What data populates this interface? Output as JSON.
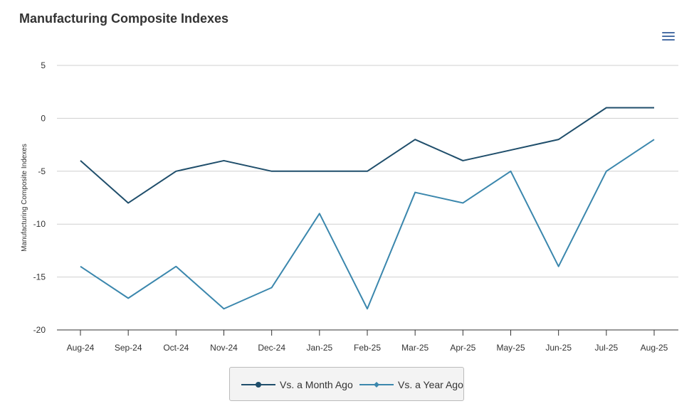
{
  "title": "Manufacturing Composite Indexes",
  "menu_icon": "hamburger-menu-icon",
  "chart_data": {
    "type": "line",
    "title": "Manufacturing Composite Indexes",
    "xlabel": "",
    "ylabel": "Manufacturing Composite Indexes",
    "categories": [
      "Aug-24",
      "Sep-24",
      "Oct-24",
      "Nov-24",
      "Dec-24",
      "Jan-25",
      "Feb-25",
      "Mar-25",
      "Apr-25",
      "May-25",
      "Jun-25",
      "Jul-25",
      "Aug-25"
    ],
    "ylim": [
      -20,
      5
    ],
    "yticks": [
      5,
      0,
      -5,
      -10,
      -15,
      -20
    ],
    "grid": true,
    "legend_position": "bottom",
    "series": [
      {
        "name": "Vs. a Month Ago",
        "color": "#1f4e6b",
        "marker": "circle",
        "values": [
          -4,
          -8,
          -5,
          -4,
          -5,
          -5,
          -5,
          -2,
          -4,
          -3,
          -2,
          1,
          1
        ]
      },
      {
        "name": "Vs. a Year Ago",
        "color": "#3b87ad",
        "marker": "diamond",
        "values": [
          -14,
          -17,
          -14,
          -18,
          -16,
          -9,
          -18,
          -7,
          -8,
          -5,
          -14,
          -5,
          -2
        ]
      }
    ]
  }
}
